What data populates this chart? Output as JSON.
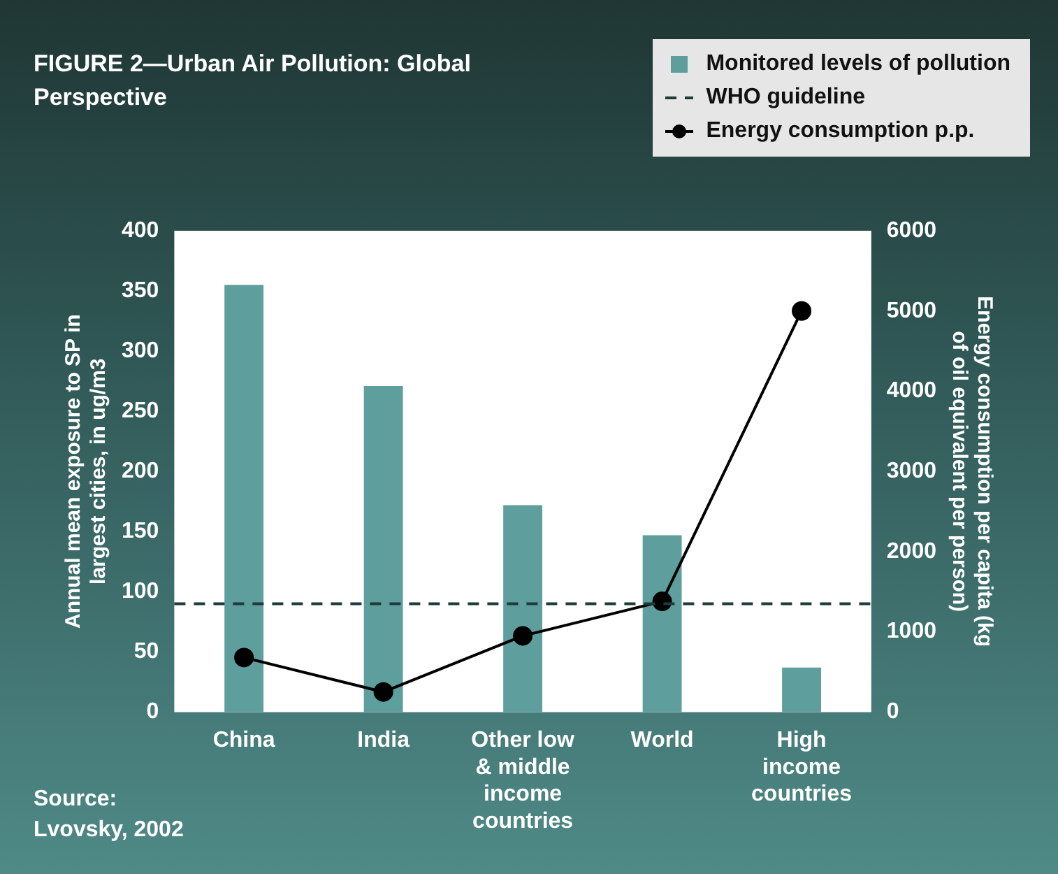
{
  "chart_data": {
    "type": "bar",
    "title": "FIGURE 2—Urban Air Pollution: Global Perspective",
    "ylabel": "Annual mean exposure to SP in largest cities, in ug/m3",
    "y2label": "Energy consumption per capita (kg of oil equivalent per person)",
    "categories": [
      "China",
      "India",
      "Other low & middle income countries",
      "World",
      "High income countries"
    ],
    "series": [
      {
        "name": "Monitored levels of pollution",
        "color": "#5e9e9c",
        "values": [
          355,
          271,
          172,
          147,
          37
        ]
      },
      {
        "name": "Energy consumption p.p.",
        "type": "line",
        "axis": "y2",
        "color": "#000000",
        "marker": "circle",
        "values": [
          680,
          250,
          950,
          1380,
          5000
        ]
      }
    ],
    "ref_lines": [
      {
        "axis": "y",
        "value": 90,
        "label": "WHO guideline",
        "color": "#1f3a3a",
        "line_style": "dashed"
      }
    ],
    "ylim": [
      0,
      400
    ],
    "yticks": [
      0,
      50,
      100,
      150,
      200,
      250,
      300,
      350,
      400
    ],
    "y2lim": [
      0,
      6000
    ],
    "y2ticks": [
      0,
      1000,
      2000,
      3000,
      4000,
      5000,
      6000
    ],
    "legend": "top right",
    "grid": false,
    "annotations": [
      "Source: Lvovsky, 2002"
    ]
  }
}
